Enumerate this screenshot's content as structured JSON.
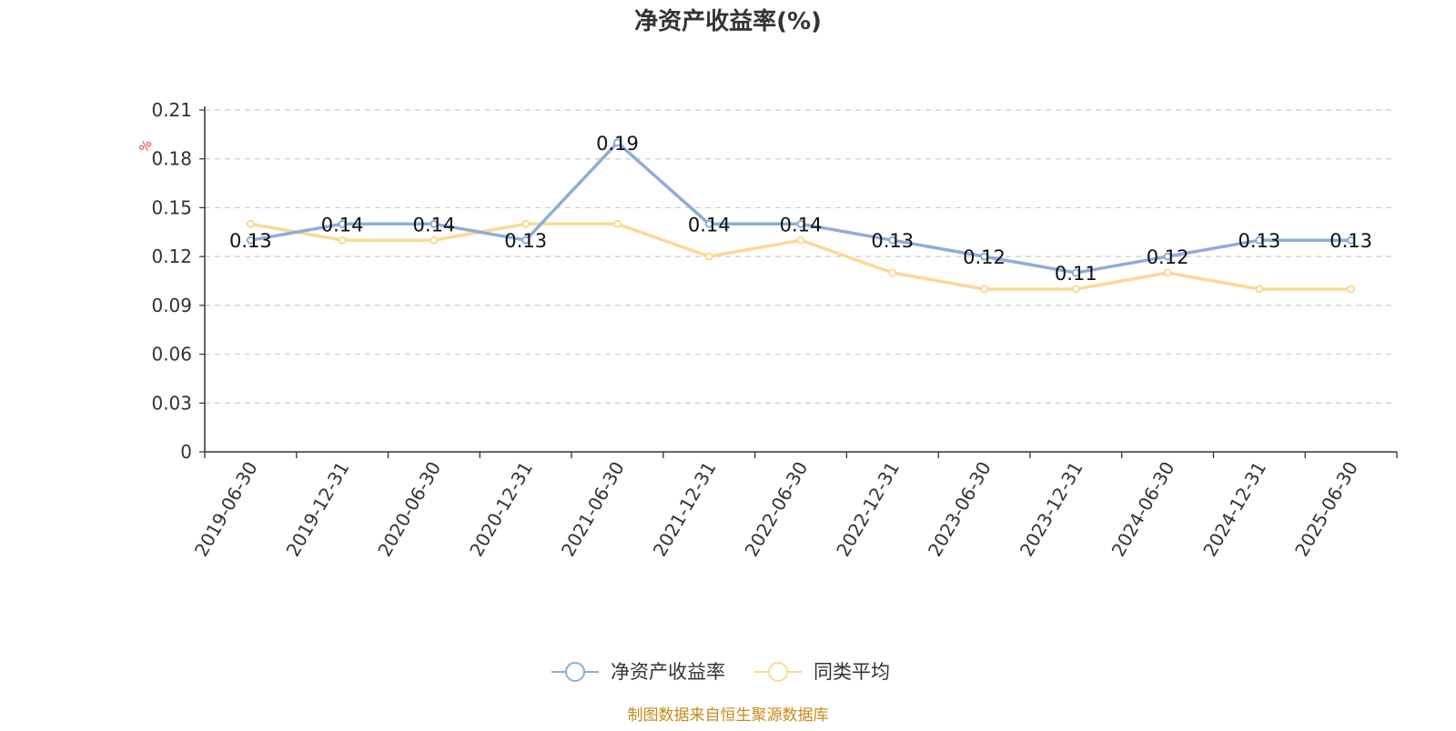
{
  "chart_data": {
    "type": "line",
    "title": "净资产收益率(%)",
    "ylabel": "%",
    "ylim": [
      0,
      0.21
    ],
    "yticks": [
      "0",
      "0.03",
      "0.06",
      "0.09",
      "0.12",
      "0.15",
      "0.18",
      "0.21"
    ],
    "categories": [
      "2019-06-30",
      "2019-12-31",
      "2020-06-30",
      "2020-12-31",
      "2021-06-30",
      "2021-12-31",
      "2022-06-30",
      "2022-12-31",
      "2023-06-30",
      "2023-12-31",
      "2024-06-30",
      "2024-12-31",
      "2025-06-30"
    ],
    "series": [
      {
        "name": "净资产收益率",
        "color": "#8eadd8",
        "values": [
          0.13,
          0.14,
          0.14,
          0.13,
          0.19,
          0.14,
          0.14,
          0.13,
          0.12,
          0.11,
          0.12,
          0.13,
          0.13
        ],
        "labels": [
          "0.13",
          "0.14",
          "0.14",
          "0.13",
          "0.19",
          "0.14",
          "0.14",
          "0.13",
          "0.12",
          "0.11",
          "0.12",
          "0.13",
          "0.13"
        ]
      },
      {
        "name": "同类平均",
        "color": "#fbd995",
        "values": [
          0.14,
          0.13,
          0.13,
          0.14,
          0.14,
          0.12,
          0.13,
          0.11,
          0.1,
          0.1,
          0.11,
          0.1,
          0.1
        ]
      }
    ],
    "grid": true,
    "legend_position": "bottom-center"
  },
  "source_text": "制图数据来自恒生聚源数据库"
}
